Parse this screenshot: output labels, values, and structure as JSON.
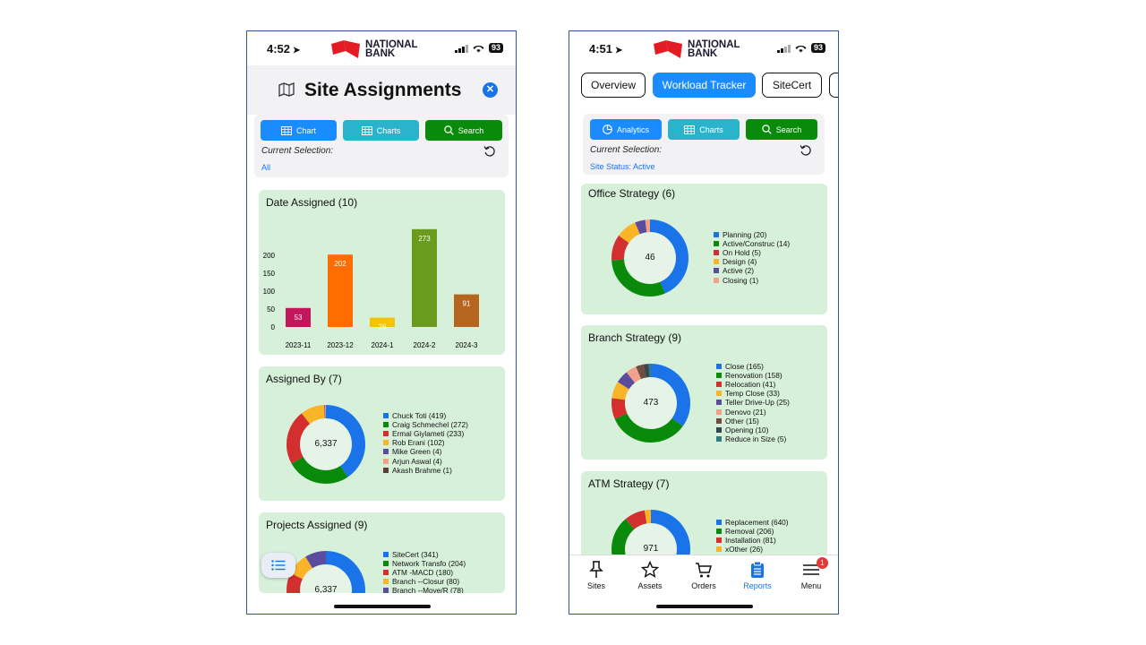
{
  "colors": {
    "blue": "#1a73e8",
    "teal": "#26b0c9",
    "green": "#0a8a0a",
    "card_bg": "#d6f0d9"
  },
  "phone1": {
    "status": {
      "time": "4:52",
      "battery": "93"
    },
    "logo": {
      "line1": "NATIONAL",
      "line2": "BANK"
    },
    "title": "Site Assignments",
    "buttons": {
      "chart": "Chart",
      "charts": "Charts",
      "search": "Search"
    },
    "current_selection_label": "Current Selection:",
    "current_selection_value": "All",
    "date_card": {
      "title": "Date Assigned (10)"
    },
    "assigned_card": {
      "title": "Assigned By (7)",
      "total": "6,337"
    },
    "projects_card": {
      "title": "Projects Assigned (9)",
      "total": "6,337"
    }
  },
  "phone2": {
    "status": {
      "time": "4:51",
      "battery": "93"
    },
    "logo": {
      "line1": "NATIONAL",
      "line2": "BANK"
    },
    "tabs": {
      "overview": "Overview",
      "workload": "Workload Tracker",
      "sitecert": "SiteCert"
    },
    "buttons": {
      "analytics": "Analytics",
      "charts": "Charts",
      "search": "Search"
    },
    "current_selection_label": "Current Selection:",
    "current_selection_value": "Site Status: Active",
    "office_card": {
      "title": "Office Strategy (6)",
      "total": "46"
    },
    "branch_card": {
      "title": "Branch Strategy (9)",
      "total": "473"
    },
    "atm_card": {
      "title": "ATM Strategy (7)",
      "total": "971"
    },
    "nav": {
      "sites": "Sites",
      "assets": "Assets",
      "orders": "Orders",
      "reports": "Reports",
      "menu": "Menu",
      "menu_badge": "1"
    }
  },
  "chart_data": [
    {
      "type": "bar",
      "title": "Date Assigned (10)",
      "categories": [
        "2023-11",
        "2023-12",
        "2024-1",
        "2024-2",
        "2024-3"
      ],
      "values": [
        53,
        202,
        26,
        273,
        91
      ],
      "colors": [
        "#c2185b",
        "#ff6d00",
        "#f5c400",
        "#6b9b1e",
        "#b5651d"
      ],
      "yticks": [
        0,
        50,
        100,
        150,
        200
      ]
    },
    {
      "type": "pie",
      "title": "Assigned By (7)",
      "labels": [
        "Chuck Toti (419)",
        "Craig Schmechel (272)",
        "Ermal Giylameti (233)",
        "Rob Erani (102)",
        "Mike Green (4)",
        "Arjun Aswal (4)",
        "Akash Brahme (1)"
      ],
      "values": [
        419,
        272,
        233,
        102,
        4,
        4,
        1
      ],
      "colors": [
        "#1a73e8",
        "#0a8a0a",
        "#d32f2f",
        "#f9b428",
        "#5b4c9e",
        "#f4a18a",
        "#5d4037"
      ]
    },
    {
      "type": "pie",
      "title": "Projects Assigned (9)",
      "labels": [
        "SiteCert (341)",
        "Network Transfo (204)",
        "ATM -MACD (180)",
        "Branch --Closur (80)",
        "Branch --Move/R (78)"
      ],
      "values": [
        341,
        204,
        180,
        80,
        78
      ],
      "colors": [
        "#1a73e8",
        "#0a8a0a",
        "#d32f2f",
        "#f9b428",
        "#5b4c9e"
      ]
    },
    {
      "type": "pie",
      "title": "Office Strategy (6)",
      "labels": [
        "Planning (20)",
        "Active/Construc (14)",
        "On Hold (5)",
        "Design (4)",
        "Active (2)",
        "Closing (1)"
      ],
      "values": [
        20,
        14,
        5,
        4,
        2,
        1
      ],
      "colors": [
        "#1a73e8",
        "#0a8a0a",
        "#d32f2f",
        "#f9b428",
        "#5b4c9e",
        "#f4a18a"
      ]
    },
    {
      "type": "pie",
      "title": "Branch Strategy (9)",
      "labels": [
        "Close (165)",
        "Renovation (158)",
        "Relocation (41)",
        "Temp Close (33)",
        "Teller Drive-Up (25)",
        "Denovo (21)",
        "Other (15)",
        "Opening (10)",
        "Reduce in Size (5)"
      ],
      "values": [
        165,
        158,
        41,
        33,
        25,
        21,
        15,
        10,
        5
      ],
      "colors": [
        "#1a73e8",
        "#0a8a0a",
        "#d32f2f",
        "#f9b428",
        "#5b4c9e",
        "#f4a18a",
        "#6d4c41",
        "#37474f",
        "#2e7d7a"
      ]
    },
    {
      "type": "pie",
      "title": "ATM Strategy (7)",
      "labels": [
        "Replacement (640)",
        "Removal (206)",
        "Installation (81)",
        "xOther (26)"
      ],
      "values": [
        640,
        206,
        81,
        26
      ],
      "colors": [
        "#1a73e8",
        "#0a8a0a",
        "#d32f2f",
        "#f9b428"
      ]
    }
  ]
}
